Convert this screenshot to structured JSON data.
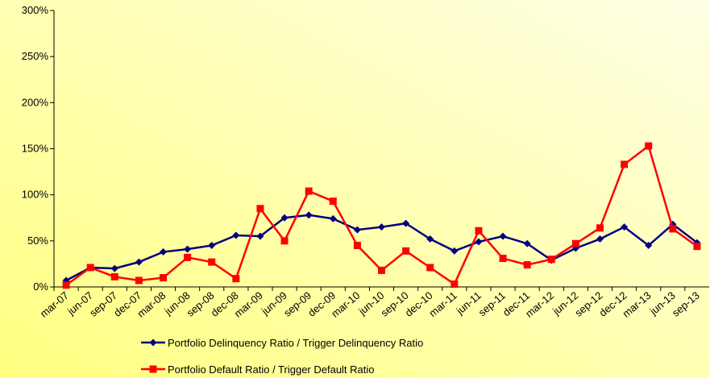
{
  "chart_data": {
    "type": "line",
    "categories": [
      "mar-07",
      "jun-07",
      "sep-07",
      "dec-07",
      "mar-08",
      "jun-08",
      "sep-08",
      "dec-08",
      "mar-09",
      "jun-09",
      "sep-09",
      "dec-09",
      "mar-10",
      "jun-10",
      "sep-10",
      "dec-10",
      "mar-11",
      "jun-11",
      "sep-11",
      "dec-11",
      "mar-12",
      "jun-12",
      "sep-12",
      "dec-12",
      "mar-13",
      "jun-13",
      "sep-13"
    ],
    "series": [
      {
        "name": "Portfolio Delinquency Ratio / Trigger Delinquency Ratio",
        "color": "#000080",
        "marker": "diamond",
        "values": [
          7,
          21,
          20,
          27,
          38,
          41,
          45,
          56,
          55,
          75,
          78,
          74,
          62,
          65,
          69,
          52,
          39,
          49,
          55,
          47,
          29,
          42,
          52,
          65,
          45,
          68,
          48
        ]
      },
      {
        "name": "Portfolio Default Ratio / Trigger Default Ratio",
        "color": "#ff0000",
        "marker": "square",
        "values": [
          2,
          21,
          11,
          7,
          10,
          32,
          27,
          9,
          85,
          50,
          104,
          93,
          45,
          18,
          39,
          21,
          3,
          61,
          31,
          24,
          30,
          47,
          64,
          133,
          153,
          63,
          44
        ]
      }
    ],
    "ylim": [
      0,
      300
    ],
    "yticks": [
      {
        "value": 0,
        "label": "0%"
      },
      {
        "value": 50,
        "label": "50%"
      },
      {
        "value": 100,
        "label": "100%"
      },
      {
        "value": 150,
        "label": "150%"
      },
      {
        "value": 200,
        "label": "200%"
      },
      {
        "value": 250,
        "label": "250%"
      },
      {
        "value": 300,
        "label": "300%"
      }
    ],
    "grid": false
  }
}
